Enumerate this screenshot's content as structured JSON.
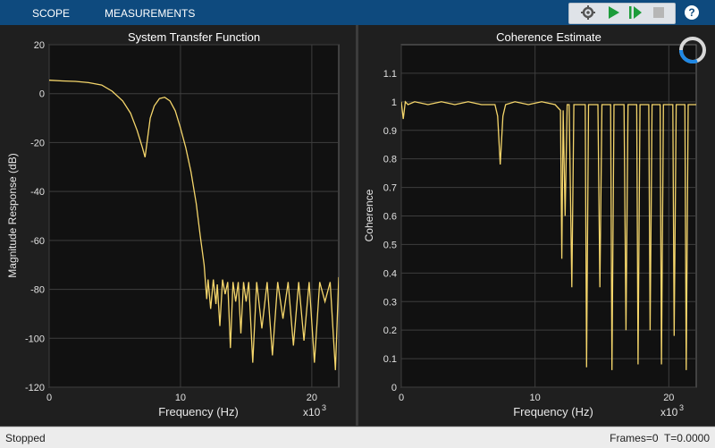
{
  "tabs": [
    "SCOPE",
    "MEASUREMENTS"
  ],
  "toolbar": {
    "icons": [
      "settings-gear-icon",
      "run-icon",
      "step-forward-icon",
      "stop-icon",
      "help-icon"
    ],
    "help_label": "?"
  },
  "status": {
    "left": "Stopped",
    "right": "Frames=0  T=0.0000"
  },
  "colors": {
    "trace": "#f5d66b",
    "plot_bg": "#111111",
    "panel_bg": "#1f1f1f",
    "toolbar_bg": "#0e4a7e"
  },
  "chart_data": [
    {
      "type": "line",
      "title": "System Transfer Function",
      "xlabel": "Frequency (Hz)",
      "ylabel": "Magnitude Response (dB)",
      "x_multiplier": "x10",
      "x_multiplier_exp": "3",
      "xlim": [
        0,
        22050
      ],
      "ylim": [
        -120,
        20
      ],
      "xticks": [
        0,
        10000,
        20000
      ],
      "xtick_labels": [
        "0",
        "10",
        "20"
      ],
      "yticks": [
        20,
        0,
        -20,
        -40,
        -60,
        -80,
        -100,
        -120
      ],
      "ytick_labels": [
        "20",
        "0",
        "-20",
        "-40",
        "-60",
        "-80",
        "-100",
        "-120"
      ],
      "grid": true,
      "series": [
        {
          "x": [
            0,
            1000,
            2000,
            3000,
            4000,
            4800,
            5600,
            6200,
            6700,
            7100,
            7300,
            7500,
            7700,
            8000,
            8400,
            8800,
            9200,
            9600,
            10000,
            10400,
            10800,
            11200,
            11500,
            11800,
            12000,
            12100,
            12300,
            12500,
            12700,
            12800,
            13000,
            13200,
            13400,
            13600,
            13800,
            14000,
            14200,
            14400,
            14600,
            14800,
            15000,
            15200,
            15500,
            15800,
            16200,
            16600,
            17000,
            17400,
            17800,
            18200,
            18600,
            19000,
            19400,
            19800,
            20200,
            20600,
            21000,
            21400,
            21800,
            22050
          ],
          "y": [
            5.5,
            5.2,
            5,
            4.5,
            3.5,
            1,
            -3,
            -8,
            -15,
            -22,
            -26,
            -18,
            -10,
            -5,
            -2,
            -1.5,
            -3,
            -7,
            -14,
            -22,
            -32,
            -45,
            -58,
            -70,
            -84,
            -76,
            -88,
            -76,
            -86,
            -78,
            -95,
            -76,
            -82,
            -77,
            -104,
            -77,
            -85,
            -77,
            -98,
            -77,
            -85,
            -77,
            -110,
            -77,
            -96,
            -77,
            -107,
            -77,
            -92,
            -77,
            -103,
            -77,
            -101,
            -77,
            -110,
            -77,
            -85,
            -77,
            -113,
            -75
          ]
        }
      ]
    },
    {
      "type": "line",
      "title": "Coherence Estimate",
      "xlabel": "Frequency (Hz)",
      "ylabel": "Coherence",
      "x_multiplier": "x10",
      "x_multiplier_exp": "3",
      "xlim": [
        0,
        22050
      ],
      "ylim": [
        0,
        1.2
      ],
      "xticks": [
        0,
        10000,
        20000
      ],
      "xtick_labels": [
        "0",
        "10",
        "20"
      ],
      "yticks": [
        1.1,
        1,
        0.9,
        0.8,
        0.7,
        0.6,
        0.5,
        0.4,
        0.3,
        0.2,
        0.1,
        0
      ],
      "ytick_labels": [
        "1.1",
        "1",
        "0.9",
        "0.8",
        "0.7",
        "0.6",
        "0.5",
        "0.4",
        "0.3",
        "0.2",
        "0.1",
        "0"
      ],
      "grid": true,
      "series": [
        {
          "x": [
            0,
            150,
            300,
            500,
            1000,
            2000,
            3000,
            4000,
            5000,
            6000,
            7000,
            7200,
            7400,
            7600,
            7800,
            8500,
            9500,
            10500,
            11500,
            11900,
            12000,
            12100,
            12250,
            12400,
            12550,
            12750,
            12900,
            13000,
            13350,
            13600,
            13750,
            13850,
            14000,
            14300,
            14700,
            14850,
            15000,
            15400,
            15650,
            15750,
            15900,
            16300,
            16650,
            16800,
            16950,
            17300,
            17600,
            17700,
            17850,
            18200,
            18500,
            18600,
            18750,
            19100,
            19350,
            19450,
            19600,
            20000,
            20300,
            20400,
            20550,
            20900,
            21200,
            21300,
            21450,
            21800,
            22050
          ],
          "y": [
            1,
            0.94,
            1,
            0.99,
            1,
            0.99,
            1,
            0.99,
            1,
            0.99,
            0.99,
            0.95,
            0.78,
            0.95,
            0.99,
            1,
            0.99,
            1,
            0.99,
            0.97,
            0.45,
            0.97,
            0.6,
            0.99,
            0.99,
            0.35,
            0.99,
            0.99,
            0.99,
            0.99,
            0.99,
            0.07,
            0.99,
            0.99,
            0.99,
            0.35,
            0.99,
            0.99,
            0.99,
            0.06,
            0.99,
            0.99,
            0.99,
            0.2,
            0.99,
            0.99,
            0.99,
            0.08,
            0.99,
            0.99,
            0.99,
            0.2,
            0.99,
            0.99,
            0.99,
            0.08,
            0.99,
            0.99,
            0.99,
            0.18,
            0.99,
            0.99,
            0.99,
            0.06,
            0.99,
            0.99,
            0.99
          ]
        }
      ]
    }
  ]
}
